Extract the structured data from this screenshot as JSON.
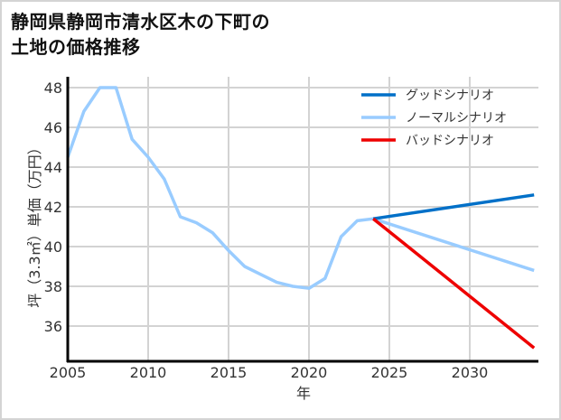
{
  "title_line1": "静岡県静岡市清水区木の下町の",
  "title_line2": "土地の価格推移",
  "chart_data": {
    "type": "line",
    "title": "静岡県静岡市清水区木の下町の土地の価格推移",
    "xlabel": "年",
    "ylabel": "坪（3.3㎡）単価（万円）",
    "xlim": [
      2005,
      2034
    ],
    "ylim": [
      34.3,
      48.7
    ],
    "x_ticks": [
      2005,
      2010,
      2015,
      2020,
      2025,
      2030
    ],
    "y_ticks": [
      36,
      38,
      40,
      42,
      44,
      46,
      48
    ],
    "grid": true,
    "legend_position": "upper right",
    "series": [
      {
        "name": "グッドシナリオ",
        "color": "#0070c8",
        "x": [
          2024,
          2034
        ],
        "values": [
          41.4,
          42.6
        ]
      },
      {
        "name": "ノーマルシナリオ",
        "color": "#99ccff",
        "x": [
          2005,
          2006,
          2007,
          2008,
          2009,
          2010,
          2011,
          2012,
          2013,
          2014,
          2015,
          2016,
          2017,
          2018,
          2019,
          2020,
          2021,
          2022,
          2023,
          2024,
          2034
        ],
        "values": [
          44.5,
          46.8,
          48.0,
          48.0,
          45.4,
          44.5,
          43.4,
          41.5,
          41.2,
          40.7,
          39.8,
          39.0,
          38.6,
          38.2,
          38.0,
          37.9,
          38.4,
          40.5,
          41.3,
          41.4,
          38.8
        ]
      },
      {
        "name": "バッドシナリオ",
        "color": "#ee0000",
        "x": [
          2024,
          2034
        ],
        "values": [
          41.4,
          34.9
        ]
      }
    ]
  }
}
